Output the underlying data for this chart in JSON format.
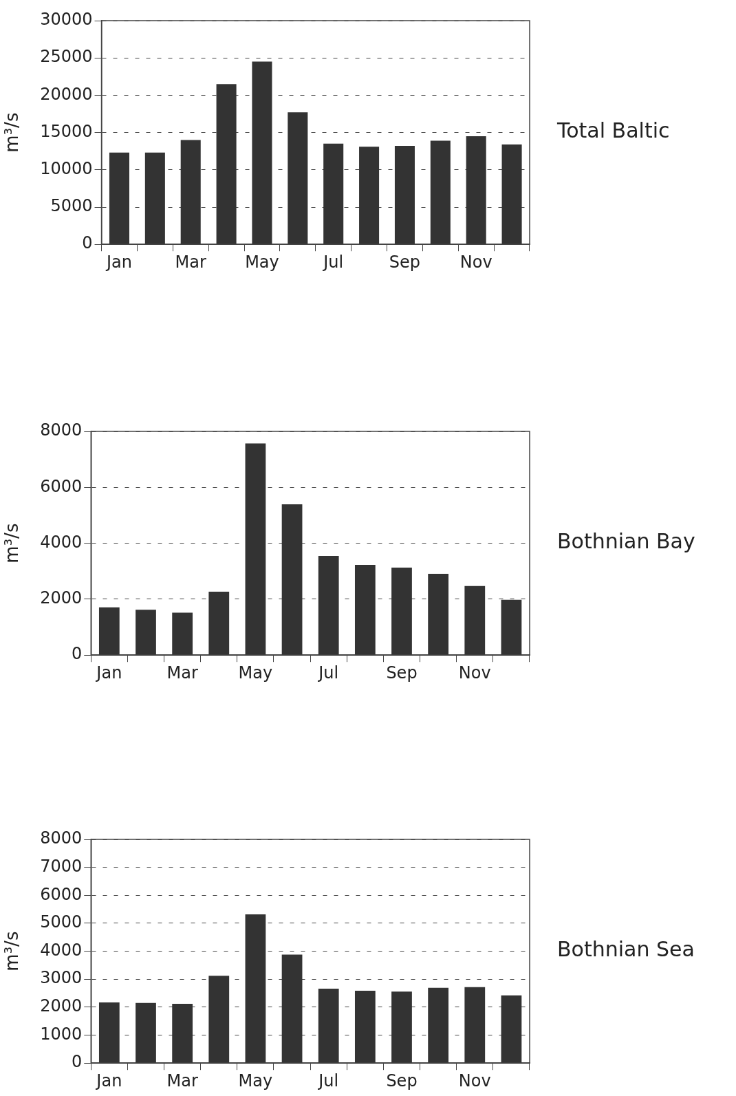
{
  "chart_data": [
    {
      "type": "bar",
      "annotations": [
        "Total Baltic"
      ],
      "ylabel": "m³/s",
      "categories": [
        "Jan",
        null,
        "Mar",
        null,
        "May",
        null,
        "Jul",
        null,
        "Sep",
        null,
        "Nov",
        null
      ],
      "color": "#333333",
      "values": [
        12300,
        12300,
        14000,
        21500,
        24500,
        17700,
        13500,
        13100,
        13200,
        13900,
        14500,
        13400
      ],
      "ylim": [
        0,
        30000
      ],
      "yticks": [
        0,
        5000,
        10000,
        15000,
        20000,
        25000,
        30000
      ],
      "grid": "y"
    },
    {
      "type": "bar",
      "annotations": [
        "Bothnian Bay"
      ],
      "ylabel": "m³/s",
      "categories": [
        "Jan",
        null,
        "Mar",
        null,
        "May",
        null,
        "Jul",
        null,
        "Sep",
        null,
        "Nov",
        null
      ],
      "color": "#333333",
      "values": [
        1710,
        1620,
        1520,
        2270,
        7570,
        5390,
        3550,
        3230,
        3130,
        2910,
        2470,
        1980
      ],
      "ylim": [
        0,
        8000
      ],
      "yticks": [
        0,
        2000,
        4000,
        6000,
        8000
      ],
      "grid": "y"
    },
    {
      "type": "bar",
      "annotations": [
        "Bothnian Sea"
      ],
      "ylabel": "m³/s",
      "categories": [
        "Jan",
        null,
        "Mar",
        null,
        "May",
        null,
        "Jul",
        null,
        "Sep",
        null,
        "Nov",
        null
      ],
      "color": "#333333",
      "values": [
        2170,
        2150,
        2120,
        3120,
        5320,
        3880,
        2660,
        2590,
        2560,
        2690,
        2720,
        2420
      ],
      "ylim": [
        0,
        8000
      ],
      "yticks": [
        0,
        1000,
        2000,
        3000,
        4000,
        5000,
        6000,
        7000,
        8000
      ],
      "grid": "y"
    }
  ]
}
